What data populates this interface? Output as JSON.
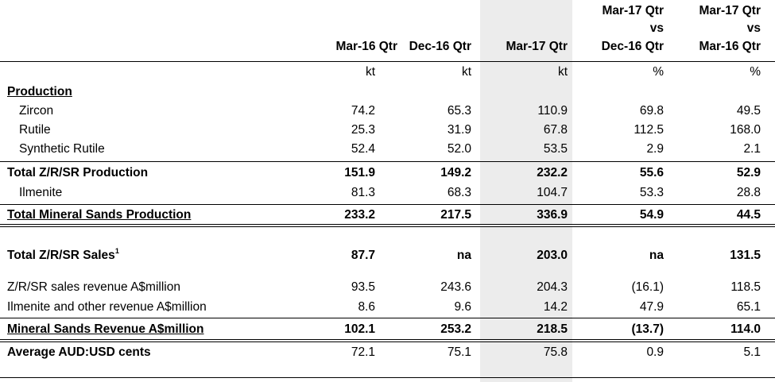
{
  "headers": {
    "col1": "Mar-16 Qtr",
    "col2": "Dec-16 Qtr",
    "col3": "Mar-17 Qtr",
    "col4": [
      "Mar-17 Qtr",
      "vs",
      "Dec-16 Qtr"
    ],
    "col5": [
      "Mar-17 Qtr",
      "vs",
      "Mar-16 Qtr"
    ]
  },
  "units": [
    "kt",
    "kt",
    "kt",
    "%",
    "%"
  ],
  "section_production": "Production",
  "rows": [
    {
      "label": "Zircon",
      "values": [
        "74.2",
        "65.3",
        "110.9",
        "69.8",
        "49.5"
      ]
    },
    {
      "label": "Rutile",
      "values": [
        "25.3",
        "31.9",
        "67.8",
        "112.5",
        "168.0"
      ]
    },
    {
      "label": "Synthetic Rutile",
      "values": [
        "52.4",
        "52.0",
        "53.5",
        "2.9",
        "2.1"
      ]
    },
    {
      "label": "Total Z/R/SR Production",
      "values": [
        "151.9",
        "149.2",
        "232.2",
        "55.6",
        "52.9"
      ]
    },
    {
      "label": "Ilmenite",
      "values": [
        "81.3",
        "68.3",
        "104.7",
        "53.3",
        "28.8"
      ]
    },
    {
      "label": "Total Mineral Sands Production",
      "values": [
        "233.2",
        "217.5",
        "336.9",
        "54.9",
        "44.5"
      ]
    },
    {
      "label": "Total Z/R/SR Sales",
      "footnote_mark": "1",
      "values": [
        "87.7",
        "na",
        "203.0",
        "na",
        "131.5"
      ]
    },
    {
      "label": "Z/R/SR sales revenue A$million",
      "values": [
        "93.5",
        "243.6",
        "204.3",
        "(16.1)",
        "118.5"
      ]
    },
    {
      "label": "Ilmenite and other revenue A$million",
      "values": [
        "8.6",
        "9.6",
        "14.2",
        "47.9",
        "65.1"
      ]
    },
    {
      "label": "Mineral Sands Revenue A$million",
      "values": [
        "102.1",
        "253.2",
        "218.5",
        "(13.7)",
        "114.0"
      ]
    },
    {
      "label": "Average AUD:USD cents",
      "values": [
        "72.1",
        "75.1",
        "75.8",
        "0.9",
        "5.1"
      ]
    }
  ]
}
